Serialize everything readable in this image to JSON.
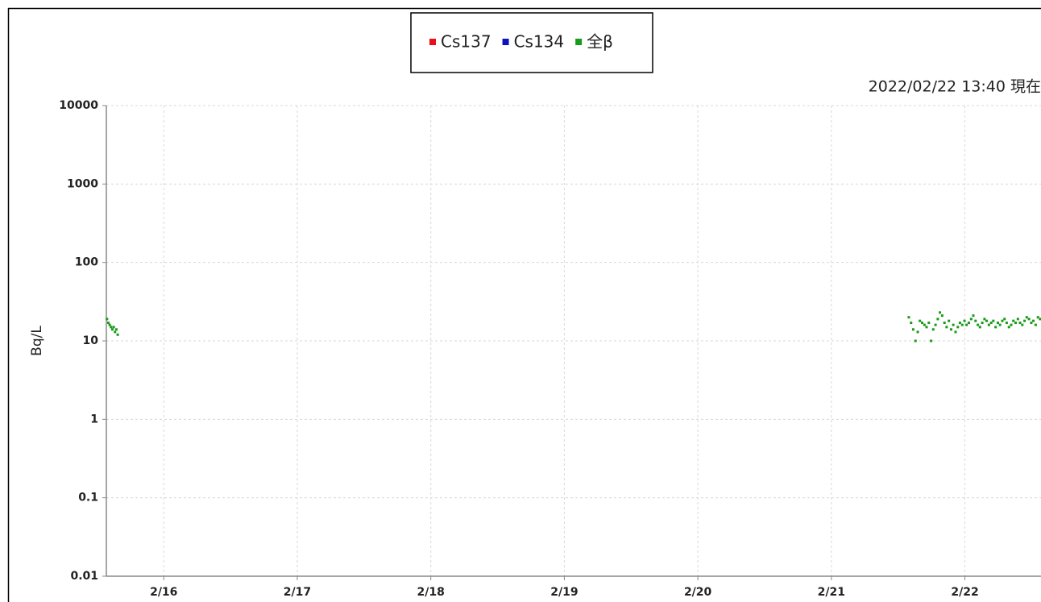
{
  "chart_data": {
    "type": "scatter",
    "ylabel": "Bq/L",
    "annotation": "2022/02/22 13:40 現在",
    "xlim": [
      15.57,
      22.57
    ],
    "xticks": [
      {
        "value": 16,
        "label": "2/16"
      },
      {
        "value": 17,
        "label": "2/17"
      },
      {
        "value": 18,
        "label": "2/18"
      },
      {
        "value": 19,
        "label": "2/19"
      },
      {
        "value": 20,
        "label": "2/20"
      },
      {
        "value": 21,
        "label": "2/21"
      },
      {
        "value": 22,
        "label": "2/22"
      }
    ],
    "ylim": [
      0.01,
      10000
    ],
    "yticks": [
      0.01,
      0.1,
      1,
      10,
      100,
      1000,
      10000
    ],
    "log_y": true,
    "grid": true,
    "legend": "top",
    "series": [
      {
        "name": "Cs137",
        "color": "#e8101a",
        "x": [],
        "values": []
      },
      {
        "name": "Cs134",
        "color": "#1010c0",
        "x": [],
        "values": []
      },
      {
        "name": "全β",
        "color": "#1a9a1a",
        "x": [
          15.575,
          15.585,
          15.595,
          15.605,
          15.615,
          15.625,
          15.635,
          15.645,
          15.655,
          21.58,
          21.597,
          21.613,
          21.63,
          21.647,
          21.663,
          21.68,
          21.697,
          21.713,
          21.73,
          21.747,
          21.763,
          21.78,
          21.797,
          21.813,
          21.83,
          21.847,
          21.863,
          21.88,
          21.897,
          21.913,
          21.93,
          21.947,
          21.963,
          21.98,
          21.997,
          22.013,
          22.03,
          22.047,
          22.063,
          22.08,
          22.097,
          22.113,
          22.13,
          22.147,
          22.163,
          22.18,
          22.197,
          22.213,
          22.23,
          22.247,
          22.263,
          22.28,
          22.297,
          22.313,
          22.33,
          22.347,
          22.363,
          22.38,
          22.397,
          22.413,
          22.43,
          22.447,
          22.463,
          22.48,
          22.497,
          22.513,
          22.53,
          22.547,
          22.563
        ],
        "values": [
          19,
          17,
          16,
          15,
          14,
          15,
          13,
          14,
          12,
          20,
          17,
          14,
          10,
          13,
          18,
          17,
          16,
          15,
          17,
          10,
          14,
          16,
          19,
          23,
          21,
          17,
          15,
          18,
          14,
          16,
          13,
          15,
          17,
          16,
          18,
          16,
          17,
          19,
          21,
          18,
          16,
          15,
          17,
          19,
          18,
          16,
          17,
          18,
          15,
          17,
          16,
          18,
          19,
          17,
          15,
          16,
          18,
          17,
          19,
          17,
          16,
          18,
          20,
          19,
          17,
          18,
          16,
          20,
          19
        ]
      }
    ]
  }
}
